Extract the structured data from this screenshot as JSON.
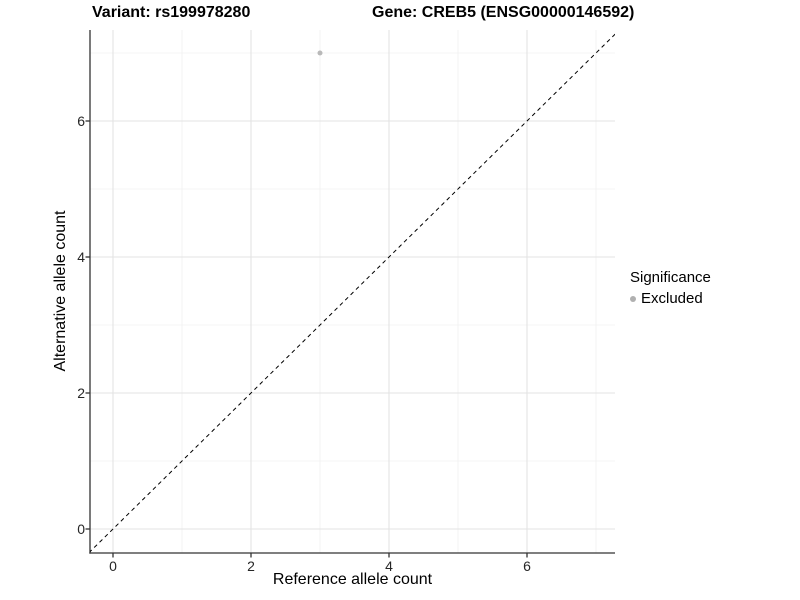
{
  "chart_data": {
    "type": "scatter",
    "titles": {
      "left": "Variant: rs199978280",
      "right": "Gene: CREB5 (ENSG00000146592)"
    },
    "xlabel": "Reference allele count",
    "ylabel": "Alternative allele count",
    "x_major_ticks": [
      0,
      2,
      4,
      6
    ],
    "x_minor_gridlines": [
      1,
      3,
      5,
      7
    ],
    "y_major_ticks": [
      0,
      2,
      4,
      6
    ],
    "y_minor_gridlines": [
      1,
      3,
      5,
      7
    ],
    "xlim": [
      -0.35,
      7.35
    ],
    "ylim": [
      -0.35,
      7.35
    ],
    "grid": "major+minor",
    "identity_line": {
      "style": "dashed",
      "from": [
        -0.35,
        -0.35
      ],
      "to": [
        7.35,
        7.35
      ],
      "color": "#000000"
    },
    "series": [
      {
        "name": "Excluded",
        "color": "#b9b9b9",
        "points": [
          [
            3,
            7
          ]
        ]
      }
    ],
    "legend": {
      "title": "Significance",
      "position": "right",
      "items": [
        {
          "label": "Excluded",
          "color": "#b0b0b0",
          "marker": "circle"
        }
      ]
    },
    "styles": {
      "axis_line_color": "#333333",
      "major_grid_color": "#e3e3e3",
      "minor_grid_color": "#f0f0f0",
      "background": "#ffffff"
    }
  }
}
